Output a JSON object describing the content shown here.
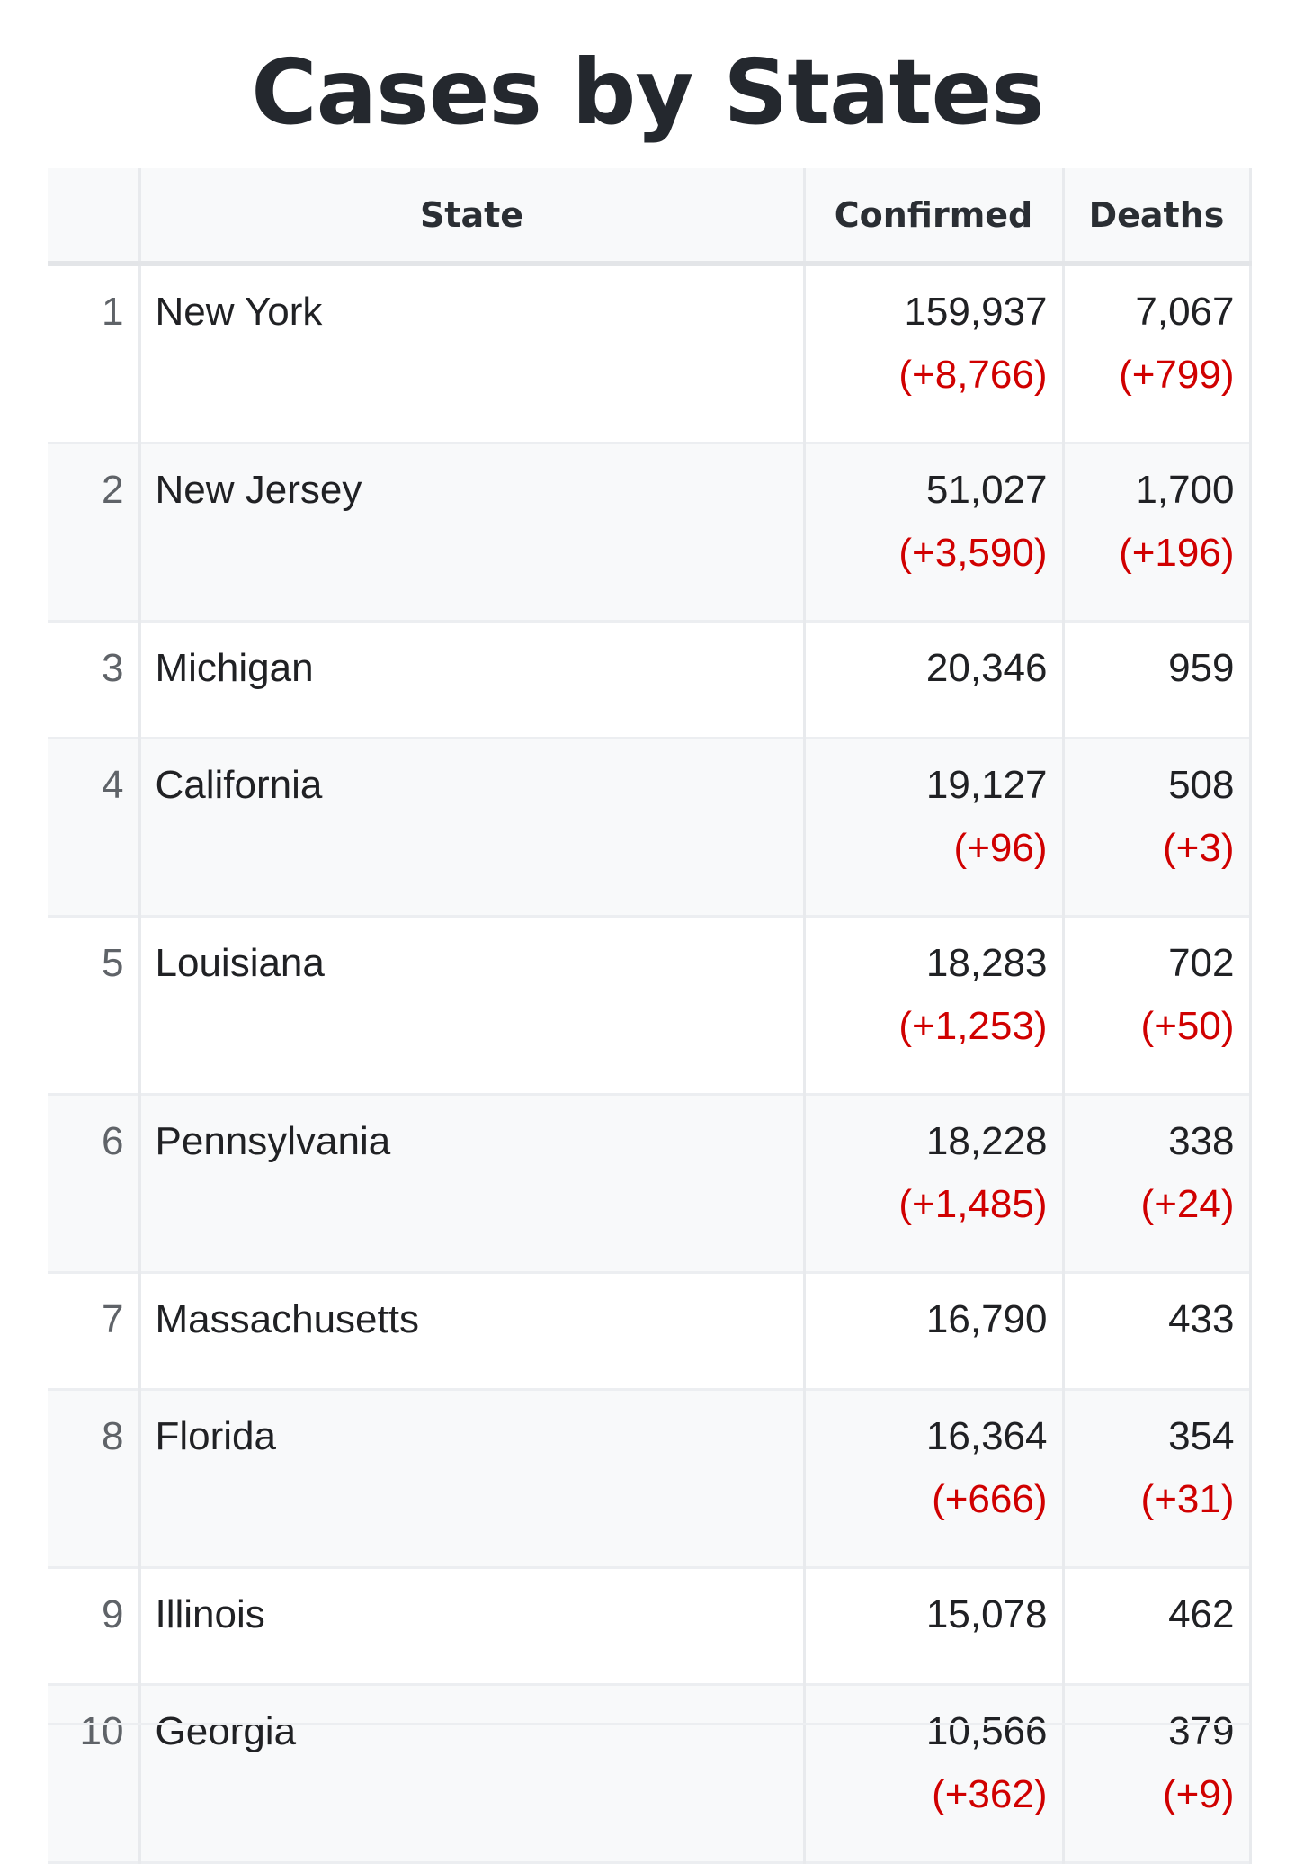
{
  "title": "Cases by States",
  "header": {
    "rank": "",
    "state": "State",
    "confirmed": "Confirmed",
    "deaths": "Deaths"
  },
  "colors": {
    "delta": "#d00000",
    "header_bg": "#f8f9fa",
    "alt_row_bg": "#f8f9fa"
  },
  "rows": [
    {
      "rank": "1",
      "state": "New York",
      "confirmed": "159,937",
      "confirmed_delta": "(+8,766)",
      "deaths": "7,067",
      "deaths_delta": "(+799)"
    },
    {
      "rank": "2",
      "state": "New Jersey",
      "confirmed": "51,027",
      "confirmed_delta": "(+3,590)",
      "deaths": "1,700",
      "deaths_delta": "(+196)"
    },
    {
      "rank": "3",
      "state": "Michigan",
      "confirmed": "20,346",
      "confirmed_delta": "",
      "deaths": "959",
      "deaths_delta": ""
    },
    {
      "rank": "4",
      "state": "California",
      "confirmed": "19,127",
      "confirmed_delta": "(+96)",
      "deaths": "508",
      "deaths_delta": "(+3)"
    },
    {
      "rank": "5",
      "state": "Louisiana",
      "confirmed": "18,283",
      "confirmed_delta": "(+1,253)",
      "deaths": "702",
      "deaths_delta": "(+50)"
    },
    {
      "rank": "6",
      "state": "Pennsylvania",
      "confirmed": "18,228",
      "confirmed_delta": "(+1,485)",
      "deaths": "338",
      "deaths_delta": "(+24)"
    },
    {
      "rank": "7",
      "state": "Massachusetts",
      "confirmed": "16,790",
      "confirmed_delta": "",
      "deaths": "433",
      "deaths_delta": ""
    },
    {
      "rank": "8",
      "state": "Florida",
      "confirmed": "16,364",
      "confirmed_delta": "(+666)",
      "deaths": "354",
      "deaths_delta": "(+31)"
    },
    {
      "rank": "9",
      "state": "Illinois",
      "confirmed": "15,078",
      "confirmed_delta": "",
      "deaths": "462",
      "deaths_delta": ""
    },
    {
      "rank": "10",
      "state": "Georgia",
      "confirmed": "10,566",
      "confirmed_delta": "(+362)",
      "deaths": "379",
      "deaths_delta": "(+9)"
    }
  ]
}
